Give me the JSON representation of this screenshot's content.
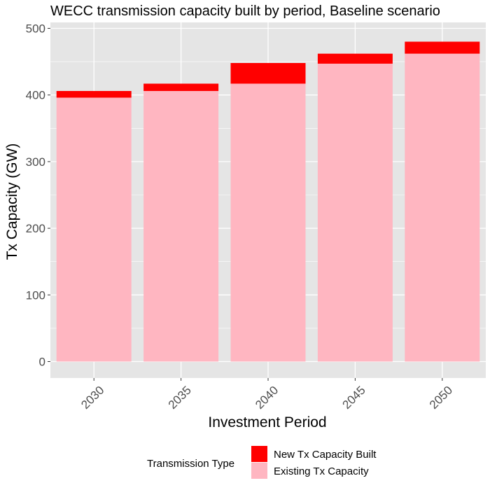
{
  "chart_data": {
    "type": "bar",
    "stacked": true,
    "title": "WECC transmission capacity built by period, Baseline scenario",
    "xlabel": "Investment Period",
    "ylabel": "Tx Capacity (GW)",
    "categories": [
      "2030",
      "2035",
      "2040",
      "2045",
      "2050"
    ],
    "series": [
      {
        "name": "Existing Tx Capacity",
        "color": "#ffb6c1",
        "values": [
          396,
          406,
          417,
          447,
          462
        ]
      },
      {
        "name": "New Tx Capacity Built",
        "color": "#ff0000",
        "values": [
          10,
          11,
          31,
          15,
          18
        ]
      }
    ],
    "ylim": [
      0,
      500
    ],
    "yticks": [
      0,
      100,
      200,
      300,
      400,
      500
    ],
    "grid": true,
    "legend": {
      "title": "Transmission Type",
      "position": "bottom",
      "entries": [
        {
          "label": "New Tx Capacity Built",
          "color": "#ff0000"
        },
        {
          "label": "Existing Tx Capacity",
          "color": "#ffb6c1"
        }
      ]
    },
    "panel_background": "#e5e5e5"
  }
}
